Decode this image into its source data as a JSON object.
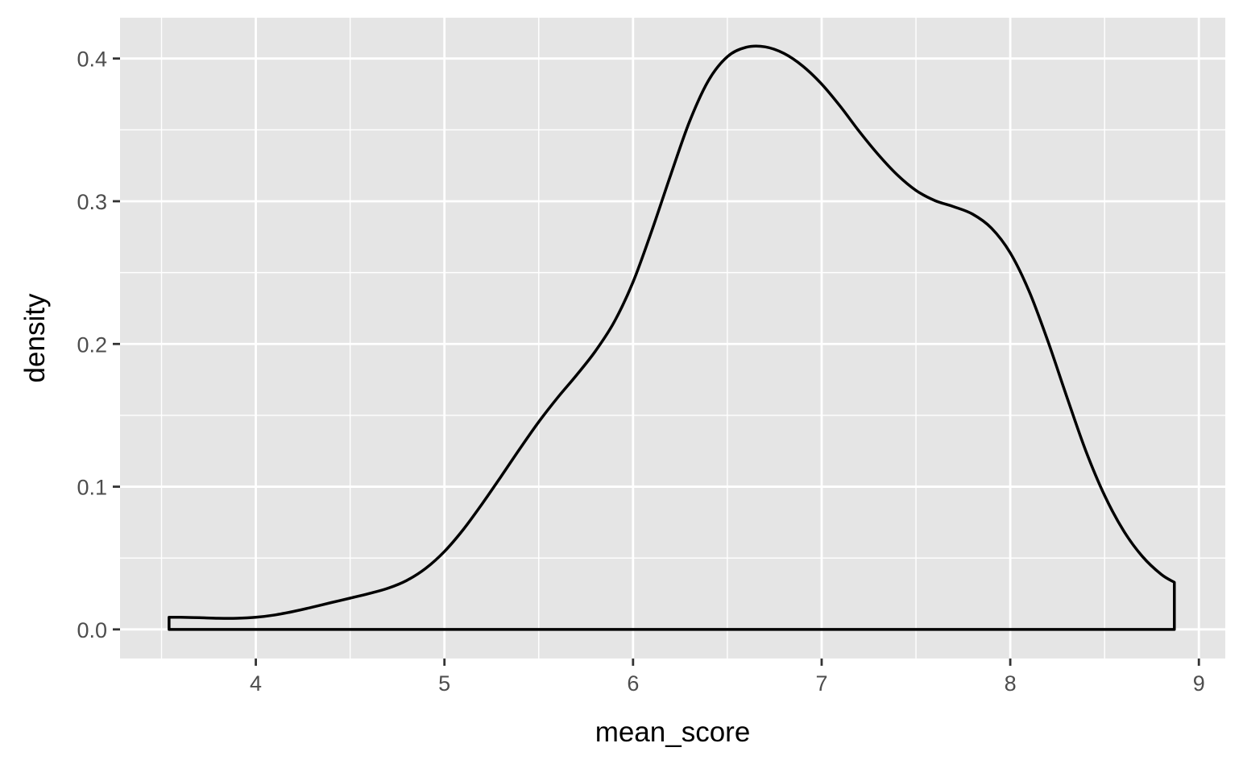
{
  "chart_data": {
    "type": "area",
    "xlabel": "mean_score",
    "ylabel": "density",
    "xlim": [
      3.28,
      9.14
    ],
    "ylim": [
      -0.0204,
      0.4286
    ],
    "x_ticks": [
      4,
      5,
      6,
      7,
      8,
      9
    ],
    "x_tick_labels": [
      "4",
      "5",
      "6",
      "7",
      "8",
      "9"
    ],
    "y_ticks": [
      0.0,
      0.1,
      0.2,
      0.3,
      0.4
    ],
    "y_tick_labels": [
      "0.0",
      "0.1",
      "0.2",
      "0.3",
      "0.4"
    ],
    "grid": true,
    "legend": "none",
    "colors": {
      "panel_background": "#e5e5e5",
      "grid": "#ffffff",
      "line": "#000000",
      "fill": "none"
    },
    "series": [
      {
        "x": [
          3.54,
          3.6,
          3.7,
          3.8,
          3.9,
          4.0,
          4.1,
          4.2,
          4.3,
          4.4,
          4.5,
          4.6,
          4.7,
          4.8,
          4.9,
          5.0,
          5.1,
          5.2,
          5.3,
          5.4,
          5.5,
          5.6,
          5.7,
          5.8,
          5.9,
          6.0,
          6.1,
          6.2,
          6.3,
          6.4,
          6.5,
          6.6,
          6.7,
          6.8,
          6.9,
          7.0,
          7.1,
          7.2,
          7.3,
          7.4,
          7.5,
          7.6,
          7.7,
          7.8,
          7.9,
          8.0,
          8.1,
          8.2,
          8.3,
          8.4,
          8.5,
          8.6,
          8.7,
          8.8,
          8.87
        ],
        "y": [
          0.0085,
          0.0085,
          0.0082,
          0.0078,
          0.0078,
          0.0085,
          0.0101,
          0.0126,
          0.0156,
          0.0188,
          0.0219,
          0.0251,
          0.0288,
          0.0343,
          0.0427,
          0.0546,
          0.07,
          0.088,
          0.1071,
          0.1266,
          0.1454,
          0.1624,
          0.1781,
          0.1949,
          0.2154,
          0.2434,
          0.2796,
          0.3186,
          0.356,
          0.3846,
          0.4013,
          0.4079,
          0.4082,
          0.4036,
          0.3947,
          0.3821,
          0.3663,
          0.3488,
          0.3327,
          0.3186,
          0.3076,
          0.3005,
          0.2962,
          0.291,
          0.2812,
          0.2638,
          0.2369,
          0.2018,
          0.1629,
          0.1253,
          0.0939,
          0.0693,
          0.0512,
          0.0386,
          0.033
        ]
      }
    ]
  }
}
